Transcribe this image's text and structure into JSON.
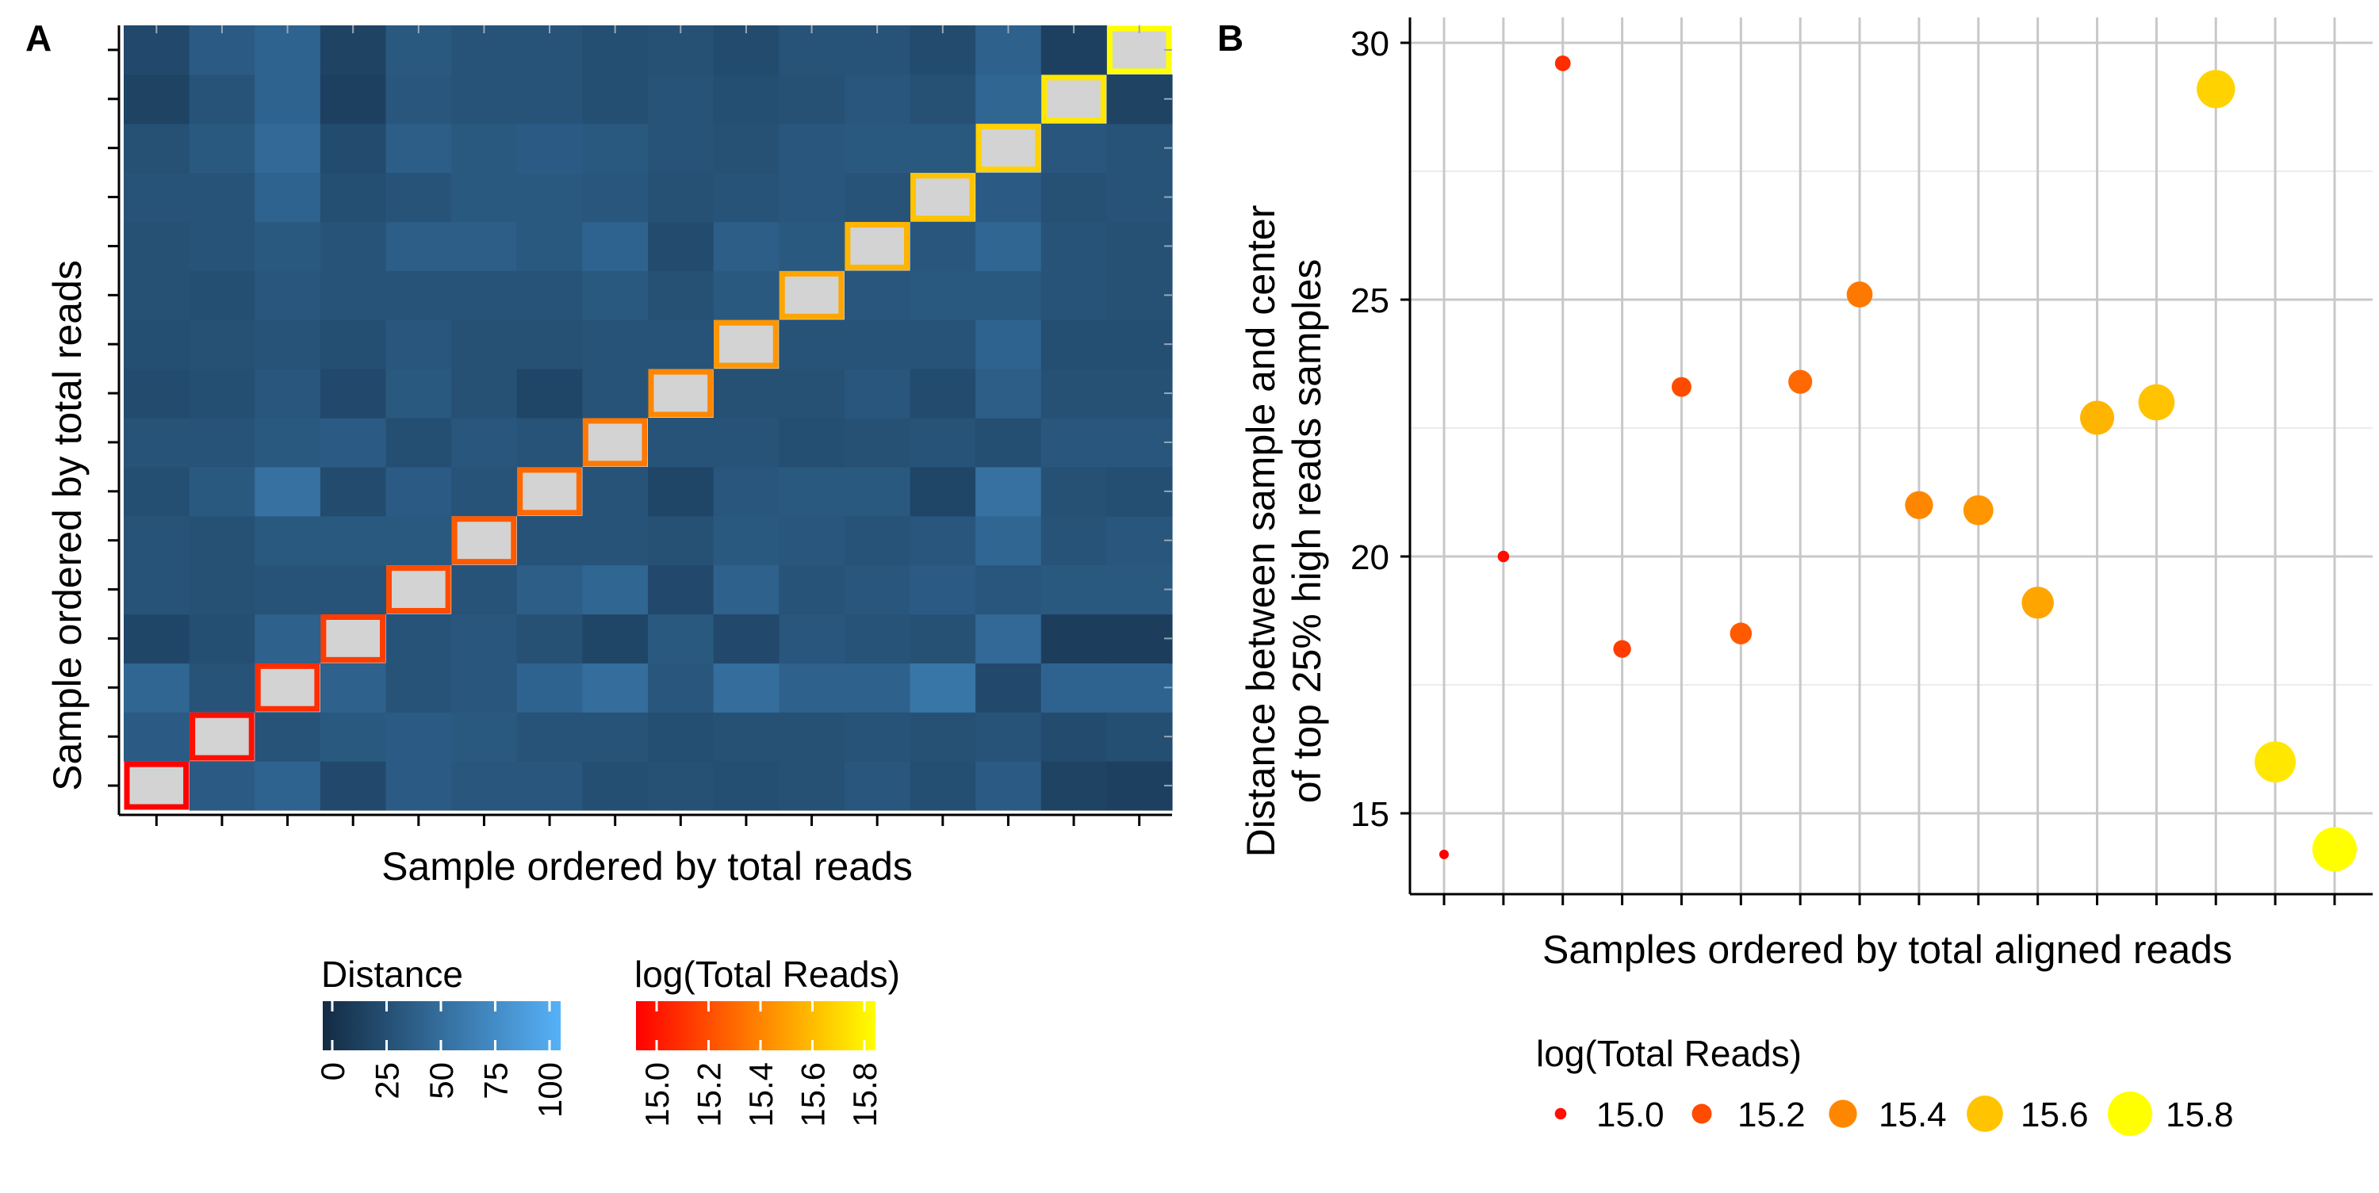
{
  "panels": {
    "a": {
      "tag": "A",
      "xlabel": "Sample ordered by total reads",
      "ylabel": "Sample ordered by total reads",
      "legends": {
        "distance": {
          "title": "Distance",
          "ticks": [
            "0",
            "25",
            "50",
            "75",
            "100"
          ],
          "color_low": "#132B43",
          "color_high": "#56B1F7"
        },
        "reads": {
          "title": "log(Total Reads)",
          "ticks": [
            "15.0",
            "15.2",
            "15.4",
            "15.6",
            "15.8"
          ],
          "color_low": "#FF0000",
          "color_high": "#FFFF00"
        }
      }
    },
    "b": {
      "tag": "B",
      "xlabel": "Samples ordered by total aligned reads",
      "ylabel_line1": "Distance between sample and center",
      "ylabel_line2": "of top 25% high reads samples",
      "legend_title": "log(Total Reads)",
      "legend_items": [
        "15.0",
        "15.2",
        "15.4",
        "15.6",
        "15.8"
      ]
    }
  },
  "chart_data": [
    {
      "type": "heatmap",
      "xlabel": "Sample ordered by total reads",
      "ylabel": "Sample ordered by total reads",
      "n": 16,
      "color_scale": {
        "name": "Distance",
        "range": [
          0,
          100
        ],
        "low": "#132B43",
        "high": "#56B1F7"
      },
      "diagonal_fill": "#D3D3D3",
      "diagonal_log_reads": [
        14.95,
        15.0,
        15.1,
        15.15,
        15.2,
        15.25,
        15.3,
        15.35,
        15.4,
        15.45,
        15.5,
        15.55,
        15.6,
        15.65,
        15.72,
        15.8
      ],
      "values": [
        [
          0,
          36,
          42,
          22,
          36,
          32,
          32,
          26,
          28,
          26,
          28,
          32,
          26,
          36,
          18,
          16
        ],
        [
          36,
          0,
          30,
          34,
          36,
          34,
          30,
          30,
          26,
          28,
          28,
          30,
          28,
          30,
          24,
          26
        ],
        [
          44,
          30,
          0,
          40,
          30,
          32,
          42,
          50,
          32,
          50,
          40,
          40,
          56,
          22,
          42,
          42
        ],
        [
          20,
          26,
          40,
          0,
          30,
          32,
          28,
          20,
          34,
          22,
          32,
          30,
          28,
          46,
          14,
          14
        ],
        [
          30,
          28,
          30,
          30,
          0,
          30,
          38,
          44,
          22,
          40,
          30,
          32,
          36,
          32,
          34,
          34
        ],
        [
          30,
          28,
          34,
          34,
          34,
          0,
          30,
          30,
          28,
          34,
          32,
          30,
          32,
          44,
          30,
          32
        ],
        [
          26,
          34,
          52,
          24,
          36,
          30,
          0,
          30,
          20,
          32,
          34,
          34,
          20,
          52,
          28,
          26
        ],
        [
          30,
          30,
          34,
          36,
          26,
          32,
          30,
          0,
          30,
          30,
          26,
          28,
          30,
          26,
          32,
          32
        ],
        [
          24,
          26,
          32,
          22,
          34,
          28,
          20,
          30,
          0,
          28,
          28,
          32,
          24,
          38,
          28,
          28
        ],
        [
          26,
          28,
          30,
          26,
          32,
          28,
          28,
          30,
          30,
          0,
          30,
          30,
          30,
          42,
          26,
          26
        ],
        [
          28,
          26,
          32,
          30,
          30,
          30,
          30,
          34,
          28,
          34,
          0,
          32,
          34,
          34,
          30,
          28
        ],
        [
          28,
          30,
          34,
          30,
          38,
          38,
          34,
          42,
          24,
          38,
          34,
          0,
          32,
          44,
          30,
          28
        ],
        [
          30,
          30,
          42,
          26,
          30,
          34,
          34,
          32,
          28,
          30,
          32,
          30,
          0,
          36,
          28,
          30
        ],
        [
          28,
          34,
          46,
          24,
          38,
          34,
          36,
          34,
          30,
          28,
          32,
          34,
          34,
          0,
          32,
          30
        ],
        [
          18,
          30,
          42,
          16,
          32,
          30,
          30,
          26,
          30,
          26,
          28,
          32,
          28,
          44,
          0,
          18
        ],
        [
          22,
          36,
          42,
          18,
          34,
          30,
          30,
          26,
          28,
          24,
          30,
          30,
          24,
          40,
          16,
          0
        ]
      ]
    },
    {
      "type": "scatter",
      "xlabel": "Samples ordered by total aligned reads",
      "ylabel": "Distance between sample and center of top 25% high reads samples",
      "x": [
        1,
        2,
        3,
        4,
        5,
        6,
        7,
        8,
        9,
        10,
        11,
        12,
        13,
        14,
        15,
        16
      ],
      "y": [
        14.2,
        20.0,
        29.6,
        18.2,
        23.3,
        18.5,
        23.4,
        25.1,
        21.0,
        20.9,
        19.1,
        22.7,
        23.0,
        29.1,
        16.0,
        14.3
      ],
      "size_color": [
        14.95,
        15.0,
        15.1,
        15.15,
        15.2,
        15.25,
        15.3,
        15.35,
        15.4,
        15.45,
        15.5,
        15.55,
        15.6,
        15.65,
        15.72,
        15.8
      ],
      "ylim": [
        13.3,
        30.3
      ],
      "yticks": [
        15,
        20,
        25,
        30
      ],
      "legend": {
        "title": "log(Total Reads)",
        "placement": "bottom",
        "entries": [
          "15.0",
          "15.2",
          "15.4",
          "15.6",
          "15.8"
        ]
      },
      "grid": true
    }
  ]
}
